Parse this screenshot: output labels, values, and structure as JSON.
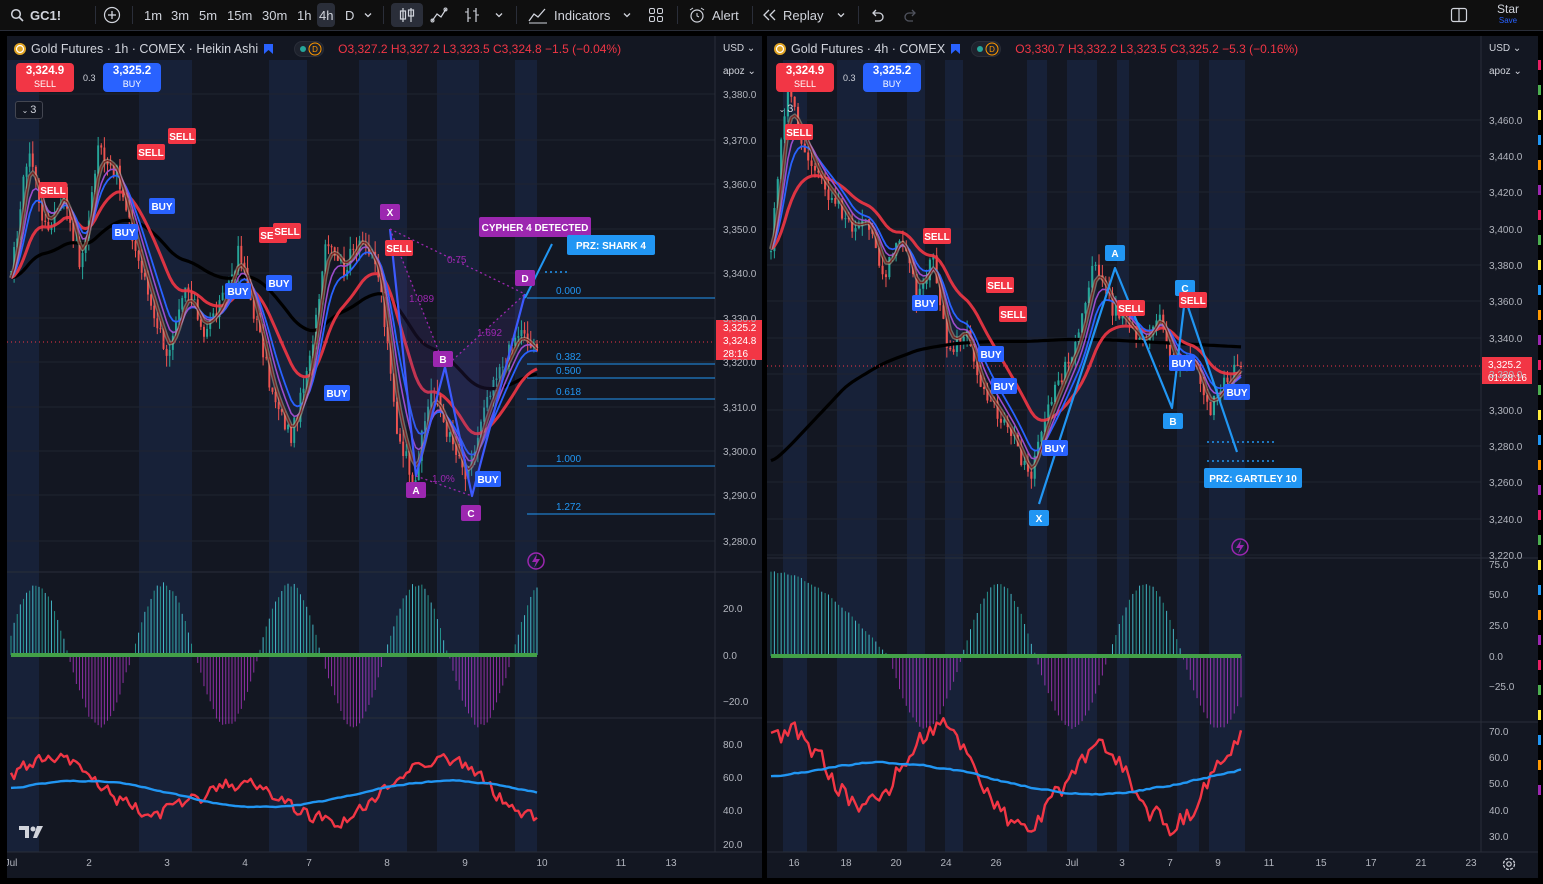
{
  "toolbar": {
    "symbol": "GC1!",
    "intervals": [
      "1m",
      "3m",
      "5m",
      "15m",
      "30m",
      "1h",
      "4h",
      "D"
    ],
    "selected_interval": "4h",
    "indicators_label": "Indicators",
    "alert_label": "Alert",
    "replay_label": "Replay",
    "star_label": "Star",
    "save_label": "Save"
  },
  "left_chart": {
    "title": "Gold Futures · 1h · COMEX · Heikin Ashi",
    "ohlc": {
      "o": "3,327.2",
      "h": "3,327.2",
      "l": "3,323.5",
      "c": "3,324.8",
      "chg": "−1.5 (−0.04%)"
    },
    "sell": {
      "price": "3,324.9",
      "label": "SELL"
    },
    "buy": {
      "price": "3,325.2",
      "label": "BUY"
    },
    "spread": "0.3",
    "collapse_count": "3",
    "currency": "USD",
    "scale_mode": "apoz",
    "price_axis": [
      "3,380.0",
      "3,370.0",
      "3,360.0",
      "3,350.0",
      "3,340.0",
      "3,330.0",
      "3,320.0",
      "3,310.0",
      "3,300.0",
      "3,290.0",
      "3,280.0"
    ],
    "osc_axis": [
      "20.0",
      "0.0",
      "−20.0"
    ],
    "rsi_axis": [
      "80.0",
      "60.0",
      "40.0",
      "20.0"
    ],
    "time_axis": [
      "Jul",
      "2",
      "3",
      "4",
      "7",
      "8",
      "9",
      "10",
      "11",
      "13"
    ],
    "last_price": {
      "top": "3,325.2",
      "mid": "3,324.8",
      "bot": "28:16"
    },
    "pattern_label": "CYPHER 4 DETECTED",
    "prz_label": "PRZ: SHARK 4",
    "points": [
      "X",
      "A",
      "B",
      "C",
      "D"
    ],
    "ratios": [
      "0.75",
      "1.089",
      "1.692",
      "1.0%"
    ],
    "fib_levels": [
      "0.000",
      "0.382",
      "0.500",
      "0.618",
      "1.000",
      "1.272"
    ],
    "buy_tag": "BUY",
    "sell_tag": "SELL"
  },
  "right_chart": {
    "title": "Gold Futures · 4h · COMEX",
    "ohlc": {
      "o": "3,330.7",
      "h": "3,332.2",
      "l": "3,323.5",
      "c": "3,325.2",
      "chg": "−5.3 (−0.16%)"
    },
    "sell": {
      "price": "3,324.9",
      "label": "SELL"
    },
    "buy": {
      "price": "3,325.2",
      "label": "BUY"
    },
    "spread": "0.3",
    "collapse_count": "3",
    "currency": "USD",
    "scale_mode": "apoz",
    "price_axis": [
      "3,460.0",
      "3,440.0",
      "3,420.0",
      "3,400.0",
      "3,380.0",
      "3,360.0",
      "3,340.0",
      "3,320.0",
      "3,300.0",
      "3,280.0",
      "3,260.0",
      "3,240.0",
      "3,220.0"
    ],
    "osc_axis": [
      "75.0",
      "50.0",
      "25.0",
      "0.0",
      "−25.0"
    ],
    "rsi_axis": [
      "70.0",
      "60.0",
      "50.0",
      "40.0",
      "30.0"
    ],
    "time_axis": [
      "16",
      "18",
      "20",
      "24",
      "26",
      "Jul",
      "3",
      "7",
      "9",
      "11",
      "15",
      "17",
      "21",
      "23"
    ],
    "last_price": {
      "top": "3,325.2",
      "bot": "01:28:16"
    },
    "prz_label": "PRZ: GARTLEY 10",
    "points": [
      "X",
      "A",
      "B",
      "C"
    ],
    "buy_tag": "BUY",
    "sell_tag": "SELL"
  },
  "chart_data": [
    {
      "type": "candlestick",
      "title": "Gold Futures · 1h · COMEX · Heikin Ashi",
      "ylim": [
        3275,
        3385
      ],
      "overlays": [
        "EMA 200 (black)",
        "EMA (red)",
        "EMA (blue)",
        "EMA (purple)",
        "EMA (brown/olive)"
      ],
      "price_path": [
        3342,
        3372,
        3352,
        3362,
        3344,
        3372,
        3366,
        3350,
        3336,
        3324,
        3340,
        3330,
        3336,
        3348,
        3332,
        3314,
        3306,
        3322,
        3352,
        3344,
        3352,
        3342,
        3308,
        3296,
        3318,
        3306,
        3296,
        3312,
        3322,
        3330,
        3324.8
      ],
      "harmonic": {
        "name": "CYPHER 4",
        "X": 3349,
        "A": 3296,
        "B": 3322,
        "C": 3292,
        "D": 3336,
        "fib_levels": [
          0,
          0.382,
          0.5,
          0.618,
          1,
          1.272
        ]
      },
      "colors": {
        "up": "#26a69a",
        "down": "#ef5350",
        "buy": "#2962ff",
        "sell": "#f23645",
        "pattern": "#9c27b0"
      }
    },
    {
      "type": "candlestick",
      "title": "Gold Futures · 4h · COMEX",
      "ylim": [
        3215,
        3475
      ],
      "overlays": [
        "EMA 200 (black)",
        "EMA (red)",
        "EMA (blue)",
        "EMA (purple)",
        "EMA (brown/olive)"
      ],
      "price_path": [
        3385,
        3470,
        3440,
        3420,
        3410,
        3395,
        3400,
        3370,
        3395,
        3360,
        3380,
        3330,
        3345,
        3310,
        3300,
        3285,
        3265,
        3300,
        3320,
        3340,
        3380,
        3355,
        3345,
        3335,
        3352,
        3320,
        3330,
        3300,
        3315,
        3325.2
      ],
      "harmonic": {
        "name": "GARTLEY 10",
        "X": 3248,
        "A": 3382,
        "B": 3294,
        "C": 3362
      },
      "colors": {
        "up": "#26a69a",
        "down": "#ef5350",
        "buy": "#2962ff",
        "sell": "#f23645",
        "pattern": "#2196f3"
      }
    }
  ]
}
